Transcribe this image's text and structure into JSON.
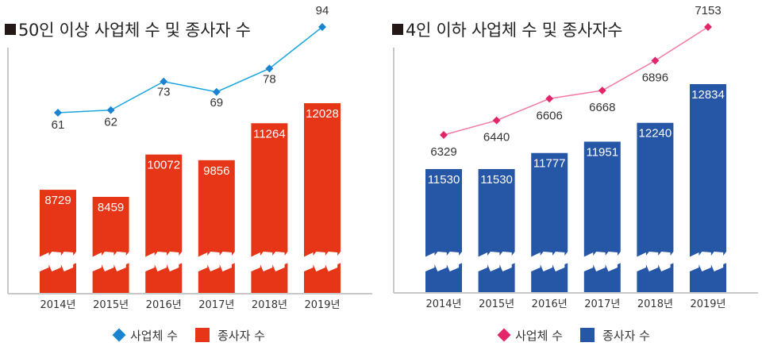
{
  "chart_data": [
    {
      "type": "bar+line",
      "title": "50인 이상 사업체 수 및 종사자 수",
      "categories": [
        "2014년",
        "2015년",
        "2016년",
        "2017년",
        "2018년",
        "2019년"
      ],
      "series": [
        {
          "name": "사업체 수",
          "kind": "line",
          "color": "#1a84d0",
          "line_color": "#1aa6e0",
          "values": [
            61,
            62,
            73,
            69,
            78,
            94
          ]
        },
        {
          "name": "종사자 수",
          "kind": "bar",
          "color": "#e73518",
          "values": [
            8729,
            8459,
            10072,
            9856,
            11264,
            12028
          ]
        }
      ],
      "axis_break": true,
      "legend": {
        "position": "bottom",
        "items": [
          "사업체 수",
          "종사자 수"
        ]
      }
    },
    {
      "type": "bar+line",
      "title": "4인 이하 사업체 수 및 종사자수",
      "categories": [
        "2014년",
        "2015년",
        "2016년",
        "2017년",
        "2018년",
        "2019년"
      ],
      "series": [
        {
          "name": "사업체 수",
          "kind": "line",
          "color": "#e3266a",
          "line_color": "#f27aa6",
          "values": [
            6329,
            6440,
            6606,
            6668,
            6896,
            7153
          ]
        },
        {
          "name": "종사자 수",
          "kind": "bar",
          "color": "#2656a6",
          "values": [
            11530,
            11530,
            11777,
            11951,
            12240,
            12834
          ]
        }
      ],
      "axis_break": true,
      "legend": {
        "position": "bottom",
        "items": [
          "사업체 수",
          "종사자 수"
        ]
      }
    }
  ]
}
